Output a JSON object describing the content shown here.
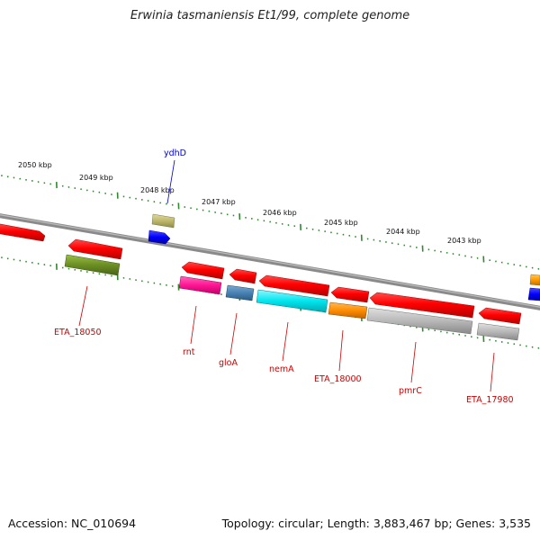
{
  "title": "Erwinia tasmaniensis Et1/99, complete genome",
  "accession": "Accession: NC_010694",
  "summary": "Topology: circular; Length: 3,883,467 bp; Genes: 3,535",
  "scale_labels": [
    "2050 kbp",
    "2049 kbp",
    "2048 kbp",
    "2047 kbp",
    "2046 kbp",
    "2045 kbp",
    "2044 kbp",
    "2043 kbp"
  ],
  "genes": [
    {
      "label": "",
      "color": "#ff0000",
      "strand": "+"
    },
    {
      "label": "",
      "color": "#ff0000",
      "strand": "+"
    },
    {
      "label": "ydhD",
      "color": "#0000ff",
      "strand": "+"
    },
    {
      "label": "",
      "color": "#ff0000",
      "strand": "-"
    },
    {
      "label": "",
      "color": "#ff0000",
      "strand": "-"
    },
    {
      "label": "",
      "color": "#ff0000",
      "strand": "-"
    },
    {
      "label": "",
      "color": "#ff0000",
      "strand": "-"
    },
    {
      "label": "",
      "color": "#ff0000",
      "strand": "-"
    },
    {
      "label": "",
      "color": "#ff0000",
      "strand": "-"
    },
    {
      "label": "",
      "color": "#ff0000",
      "strand": "-"
    },
    {
      "label": "",
      "color": "#ff9900",
      "strand": "+"
    },
    {
      "label": "",
      "color": "#0000ff",
      "strand": "+"
    }
  ],
  "cog": [
    {
      "label": "ETA_18050",
      "color": "#6b8e23"
    },
    {
      "label": "",
      "color": "#bdb76b"
    },
    {
      "label": "rnt",
      "color": "#ff1493"
    },
    {
      "label": "gloA",
      "color": "#4682b4"
    },
    {
      "label": "nemA",
      "color": "#00e5ee"
    },
    {
      "label": "ETA_18000",
      "color": "#ff8c00"
    },
    {
      "label": "pmrC",
      "color": "#b0b0b0"
    },
    {
      "label": "ETA_17980",
      "color": "#b0b0b0"
    },
    {
      "label": "",
      "color": "#ff0000"
    },
    {
      "label": "",
      "color": "#ff9900"
    }
  ]
}
